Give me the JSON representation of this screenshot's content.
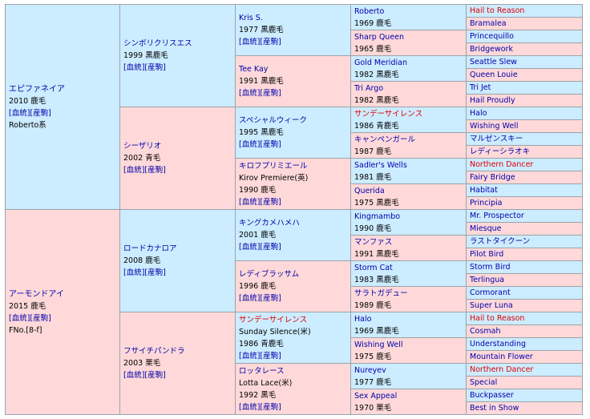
{
  "g1": [
    {
      "name": "エピファネイア",
      "year": "2010 鹿毛",
      "links": "[血統][産駒]",
      "note": "Roberto系"
    },
    {
      "name": "アーモンドアイ",
      "year": "2015 鹿毛",
      "links": "[血統][産駒]",
      "note": "FNo.[8-f]"
    }
  ],
  "g2": [
    {
      "name": "シンボリクリスエス",
      "year": "1999 黒鹿毛",
      "links": "[血統][産駒]"
    },
    {
      "name": "シーザリオ",
      "year": "2002 青毛",
      "links": "[血統][産駒]"
    },
    {
      "name": "ロードカナロア",
      "year": "2008 鹿毛",
      "links": "[血統][産駒]"
    },
    {
      "name": "フサイチパンドラ",
      "year": "2003 栗毛",
      "links": "[血統][産駒]"
    }
  ],
  "g3": [
    {
      "name": "Kris S.",
      "year": "1977 黒鹿毛",
      "links": "[血統][産駒]"
    },
    {
      "name": "Tee Kay",
      "year": "1991 黒鹿毛",
      "links": "[血統][産駒]"
    },
    {
      "name": "スペシャルウィーク",
      "year": "1995 黒鹿毛",
      "links": "[血統][産駒]"
    },
    {
      "name": "キロフプリミエール",
      "sub": "Kirov Premiere(英)",
      "year": "1990 鹿毛",
      "links": "[血統][産駒]"
    },
    {
      "name": "キングカメハメハ",
      "year": "2001 鹿毛",
      "links": "[血統][産駒]"
    },
    {
      "name": "レディブラッサム",
      "year": "1996 鹿毛",
      "links": "[血統][産駒]"
    },
    {
      "name": "サンデーサイレンス",
      "sub": "Sunday Silence(米)",
      "year": "1986 青鹿毛",
      "links": "[血統][産駒]"
    },
    {
      "name": "ロッタレース",
      "sub": "Lotta Lace(米)",
      "year": "1992 黒毛",
      "links": "[血統][産駒]"
    }
  ],
  "g4": [
    {
      "name": "Roberto",
      "year": "1969 鹿毛"
    },
    {
      "name": "Sharp Queen",
      "year": "1965 鹿毛"
    },
    {
      "name": "Gold Meridian",
      "year": "1982 黒鹿毛"
    },
    {
      "name": "Tri Argo",
      "year": "1982 黒鹿毛"
    },
    {
      "name": "サンデーサイレンス",
      "year": "1986 青鹿毛"
    },
    {
      "name": "キャンペンガール",
      "year": "1987 鹿毛"
    },
    {
      "name": "Sadler's Wells",
      "year": "1981 鹿毛"
    },
    {
      "name": "Querida",
      "year": "1975 黒鹿毛"
    },
    {
      "name": "Kingmambo",
      "year": "1990 鹿毛"
    },
    {
      "name": "マンファス",
      "year": "1991 黒鹿毛"
    },
    {
      "name": "Storm Cat",
      "year": "1983 黒鹿毛"
    },
    {
      "name": "サラトガデュー",
      "year": "1989 鹿毛"
    },
    {
      "name": "Halo",
      "year": "1969 黒鹿毛"
    },
    {
      "name": "Wishing Well",
      "year": "1975 鹿毛"
    },
    {
      "name": "Nureyev",
      "year": "1977 鹿毛"
    },
    {
      "name": "Sex Appeal",
      "year": "1970 栗毛"
    }
  ],
  "g5": [
    "Hail to Reason",
    "Bramalea",
    "Princequillo",
    "Bridgework",
    "Seattle Slew",
    "Queen Louie",
    "Tri Jet",
    "Hail Proudly",
    "Halo",
    "Wishing Well",
    "マルゼンスキー",
    "レディーシラオキ",
    "Northern Dancer",
    "Fairy Bridge",
    "Habitat",
    "Principia",
    "Mr. Prospector",
    "Miesque",
    "ラストタイクーン",
    "Pilot Bird",
    "Storm Bird",
    "Terlingua",
    "Cormorant",
    "Super Luna",
    "Hail to Reason",
    "Cosmah",
    "Understanding",
    "Mountain Flower",
    "Northern Dancer",
    "Special",
    "Buckpasser",
    "Best in Show"
  ],
  "colors": {
    "male": "#ccecff",
    "female": "#ffd9d9",
    "link": "#0000aa",
    "inbreed": "#e00000",
    "border": "#9ca3ab"
  },
  "inbreed_names": [
    "Hail to Reason",
    "サンデーサイレンス",
    "Northern Dancer"
  ]
}
